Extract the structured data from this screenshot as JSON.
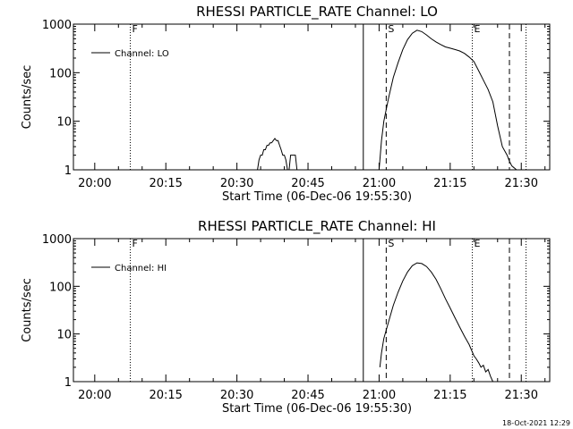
{
  "footer": {
    "timestamp": "18-Oct-2021 12:29"
  },
  "chart_data": [
    {
      "type": "line",
      "title": "RHESSI PARTICLE_RATE Channel: LO",
      "xlabel": "Start Time (06-Dec-06 19:55:30)",
      "ylabel": "Counts/sec",
      "yscale": "log",
      "ylim": [
        1,
        1000
      ],
      "yticks": [
        1,
        10,
        100,
        1000
      ],
      "ytick_labels": [
        "1",
        "10",
        "100",
        "1000"
      ],
      "xlim": [
        "19:55:30",
        "21:36:00"
      ],
      "xticks": [
        "20:00",
        "20:15",
        "20:30",
        "20:45",
        "21:00",
        "21:15",
        "21:30"
      ],
      "legend": {
        "label": "Channel: LO",
        "position": "top-left"
      },
      "markers": [
        {
          "time": "20:07:30",
          "style": "dotted",
          "label": "F"
        },
        {
          "time": "20:56:40",
          "style": "solid",
          "label": ""
        },
        {
          "time": "21:01:30",
          "style": "dashed",
          "label": "S"
        },
        {
          "time": "21:19:40",
          "style": "dotted",
          "label": "E"
        },
        {
          "time": "21:27:30",
          "style": "dashed",
          "label": ""
        },
        {
          "time": "21:31:00",
          "style": "dotted",
          "label": ""
        }
      ],
      "series": [
        {
          "segments": [
            {
              "x": [
                "20:34:20",
                "20:34:40",
                "20:35:00",
                "20:35:20",
                "20:35:40",
                "20:36:00",
                "20:36:20",
                "20:36:40",
                "20:37:00",
                "20:37:20",
                "20:37:40",
                "20:38:00",
                "20:38:20",
                "20:38:40",
                "20:39:00",
                "20:39:20",
                "20:39:40",
                "20:40:00",
                "20:40:20",
                "20:40:40"
              ],
              "y": [
                1.0,
                1.6,
                2.0,
                2.0,
                2.6,
                2.6,
                3.2,
                3.2,
                3.6,
                3.6,
                4.0,
                4.4,
                4.0,
                4.0,
                3.2,
                2.6,
                2.0,
                2.0,
                1.6,
                1.0
              ]
            },
            {
              "x": [
                "20:41:00",
                "20:41:20",
                "20:41:40",
                "20:42:00",
                "20:42:20",
                "20:42:40"
              ],
              "y": [
                1.0,
                2.0,
                2.0,
                2.0,
                2.0,
                1.0
              ]
            },
            {
              "x": [
                "21:00:00",
                "21:00:30",
                "21:01:00",
                "21:02:00",
                "21:03:00",
                "21:04:00",
                "21:05:00",
                "21:06:00",
                "21:07:00",
                "21:08:00",
                "21:09:00",
                "21:10:00",
                "21:11:00",
                "21:12:00",
                "21:13:00",
                "21:14:00",
                "21:15:00",
                "21:16:00",
                "21:17:00",
                "21:18:00",
                "21:19:00",
                "21:20:00",
                "21:21:00",
                "21:22:00",
                "21:23:00",
                "21:24:00",
                "21:25:00",
                "21:26:00",
                "21:27:00",
                "21:27:30",
                "21:28:00",
                "21:28:30",
                "21:29:00"
              ],
              "y": [
                1,
                4,
                10,
                30,
                80,
                160,
                300,
                480,
                650,
                750,
                700,
                600,
                500,
                430,
                380,
                340,
                320,
                300,
                280,
                250,
                210,
                170,
                110,
                70,
                45,
                25,
                8,
                3,
                2,
                1.5,
                1.2,
                1.1,
                1
              ]
            }
          ]
        }
      ]
    },
    {
      "type": "line",
      "title": "RHESSI PARTICLE_RATE Channel: HI",
      "xlabel": "Start Time (06-Dec-06 19:55:30)",
      "ylabel": "Counts/sec",
      "yscale": "log",
      "ylim": [
        1,
        1000
      ],
      "yticks": [
        1,
        10,
        100,
        1000
      ],
      "ytick_labels": [
        "1",
        "10",
        "100",
        "1000"
      ],
      "xlim": [
        "19:55:30",
        "21:36:00"
      ],
      "xticks": [
        "20:00",
        "20:15",
        "20:30",
        "20:45",
        "21:00",
        "21:15",
        "21:30"
      ],
      "legend": {
        "label": "Channel: HI",
        "position": "top-left"
      },
      "markers": [
        {
          "time": "20:07:30",
          "style": "dotted",
          "label": "F"
        },
        {
          "time": "20:56:40",
          "style": "solid",
          "label": ""
        },
        {
          "time": "21:01:30",
          "style": "dashed",
          "label": "S"
        },
        {
          "time": "21:19:40",
          "style": "dotted",
          "label": "E"
        },
        {
          "time": "21:27:30",
          "style": "dashed",
          "label": ""
        },
        {
          "time": "21:31:00",
          "style": "dotted",
          "label": ""
        }
      ],
      "series": [
        {
          "segments": [
            {
              "x": [
                "21:00:10",
                "21:00:30",
                "21:01:00",
                "21:02:00",
                "21:03:00",
                "21:04:00",
                "21:05:00",
                "21:06:00",
                "21:07:00",
                "21:08:00",
                "21:09:00",
                "21:10:00",
                "21:11:00",
                "21:12:00",
                "21:13:00",
                "21:14:00",
                "21:15:00",
                "21:16:00",
                "21:17:00",
                "21:18:00",
                "21:19:00",
                "21:20:00",
                "21:20:30",
                "21:21:00",
                "21:21:30",
                "21:22:00",
                "21:22:30",
                "21:23:00",
                "21:23:30",
                "21:24:00"
              ],
              "y": [
                2,
                4,
                8,
                18,
                40,
                75,
                130,
                200,
                270,
                310,
                300,
                260,
                200,
                140,
                90,
                55,
                35,
                22,
                14,
                9,
                6,
                3.5,
                3,
                2.5,
                2,
                2.2,
                1.6,
                1.8,
                1.3,
                1
              ]
            }
          ]
        }
      ]
    }
  ]
}
